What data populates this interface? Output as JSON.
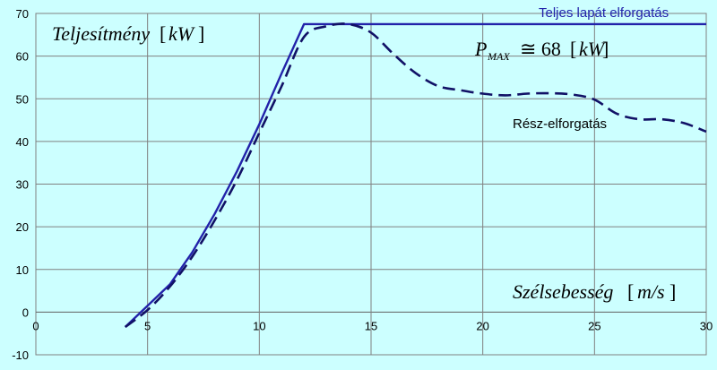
{
  "chart_data": {
    "type": "line",
    "ylabel_text": "Teljesítmény",
    "ylabel_unit": "kW",
    "xlabel_text": "Szélsebesség",
    "xlabel_unit": "m/s",
    "pmax_symbol": "P",
    "pmax_sub": "MAX",
    "pmax_relation": "≅ 68",
    "pmax_unit": "kW",
    "xlim": [
      0,
      30
    ],
    "ylim": [
      -10,
      70
    ],
    "x_ticks": [
      0,
      5,
      10,
      15,
      20,
      25,
      30
    ],
    "y_ticks": [
      -10,
      0,
      10,
      20,
      30,
      40,
      50,
      60,
      70
    ],
    "grid": true,
    "series": [
      {
        "name": "Teljes lapát elforgatás",
        "style": "solid",
        "color": "#2222aa",
        "x": [
          4,
          4.5,
          5,
          6,
          7,
          8,
          9,
          10,
          11,
          12,
          30
        ],
        "y": [
          -3.5,
          -1,
          1.5,
          6.5,
          14,
          23,
          33,
          44,
          56,
          67.5,
          67.5
        ]
      },
      {
        "name": "Rész-elforgatás",
        "style": "dashed",
        "color": "#111166",
        "x": [
          4,
          5,
          6,
          7,
          8,
          9,
          10,
          11,
          12,
          13,
          14,
          15,
          16,
          17,
          18,
          19,
          20,
          21,
          22,
          23,
          24,
          25,
          26,
          27,
          28,
          29,
          30
        ],
        "y": [
          -3.5,
          0.5,
          6,
          13,
          21.5,
          31,
          42,
          53,
          64.5,
          67,
          67.5,
          65.5,
          60.5,
          56,
          53,
          52,
          51.2,
          50.8,
          51.2,
          51.3,
          51,
          49.8,
          46.5,
          45.2,
          45.2,
          44.3,
          42.3
        ]
      }
    ]
  }
}
